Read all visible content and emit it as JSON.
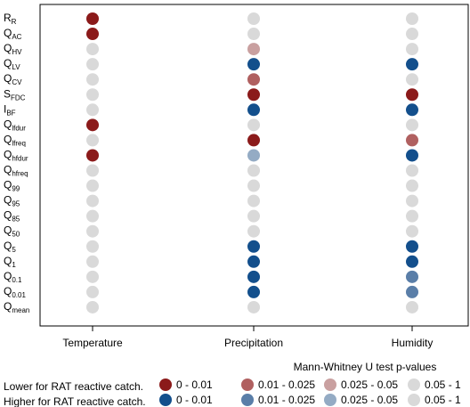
{
  "chart_data": {
    "type": "scatter",
    "title": "",
    "xlabel": "",
    "ylabel": "",
    "categories": [
      "Temperature",
      "Precipitation",
      "Humidity"
    ],
    "rows": [
      {
        "main": "R",
        "sub": "R"
      },
      {
        "main": "Q",
        "sub": "AC"
      },
      {
        "main": "Q",
        "sub": "HV"
      },
      {
        "main": "Q",
        "sub": "LV"
      },
      {
        "main": "Q",
        "sub": "CV"
      },
      {
        "main": "S",
        "sub": "FDC"
      },
      {
        "main": "I",
        "sub": "BF"
      },
      {
        "main": "Q",
        "sub": "lfdur"
      },
      {
        "main": "Q",
        "sub": "lfreq"
      },
      {
        "main": "Q",
        "sub": "hfdur"
      },
      {
        "main": "Q",
        "sub": "hfreq"
      },
      {
        "main": "Q",
        "sub": "99"
      },
      {
        "main": "Q",
        "sub": "95"
      },
      {
        "main": "Q",
        "sub": "85"
      },
      {
        "main": "Q",
        "sub": "50"
      },
      {
        "main": "Q",
        "sub": "5"
      },
      {
        "main": "Q",
        "sub": "1"
      },
      {
        "main": "Q",
        "sub": "0.1"
      },
      {
        "main": "Q",
        "sub": "0.01"
      },
      {
        "main": "Q",
        "sub": "mean"
      }
    ],
    "values": [
      [
        "lo1",
        "ns",
        "ns"
      ],
      [
        "lo1",
        "ns",
        "ns"
      ],
      [
        "ns",
        "lo3",
        "ns"
      ],
      [
        "ns",
        "hi1",
        "hi1"
      ],
      [
        "ns",
        "lo2",
        "ns"
      ],
      [
        "ns",
        "lo1",
        "lo1"
      ],
      [
        "ns",
        "hi1",
        "hi1"
      ],
      [
        "lo1",
        "ns",
        "ns"
      ],
      [
        "ns",
        "lo1",
        "lo2"
      ],
      [
        "lo1",
        "hi3",
        "hi1"
      ],
      [
        "ns",
        "ns",
        "ns"
      ],
      [
        "ns",
        "ns",
        "ns"
      ],
      [
        "ns",
        "ns",
        "ns"
      ],
      [
        "ns",
        "ns",
        "ns"
      ],
      [
        "ns",
        "ns",
        "ns"
      ],
      [
        "ns",
        "hi1",
        "hi1"
      ],
      [
        "ns",
        "hi1",
        "hi1"
      ],
      [
        "ns",
        "hi1",
        "hi2"
      ],
      [
        "ns",
        "hi1",
        "hi2"
      ],
      [
        "ns",
        "ns",
        "ns"
      ]
    ],
    "colors": {
      "lo1": "#8b1a1a",
      "lo2": "#b06060",
      "lo3": "#c9a0a0",
      "hi1": "#134f8c",
      "hi2": "#5a7ea8",
      "hi3": "#94abc4",
      "ns": "#d9d9d9"
    },
    "legend": {
      "title": "Mann-Whitney U test p-values",
      "placement": "bottom",
      "row_lower": "Lower for RAT reactive catch.",
      "row_higher": "Higher for RAT reactive catch.",
      "entries": [
        {
          "key": "lo1",
          "label": "0 - 0.01"
        },
        {
          "key": "hi1",
          "label": "0 - 0.01"
        },
        {
          "key": "lo2",
          "label": "0.01 - 0.025"
        },
        {
          "key": "hi2",
          "label": "0.01 - 0.025"
        },
        {
          "key": "lo3",
          "label": "0.025 - 0.05"
        },
        {
          "key": "hi3",
          "label": "0.025 - 0.05"
        },
        {
          "key": "ns",
          "label": "0.05 - 1"
        },
        {
          "key": "ns",
          "label": "0.05 - 1"
        }
      ]
    }
  }
}
